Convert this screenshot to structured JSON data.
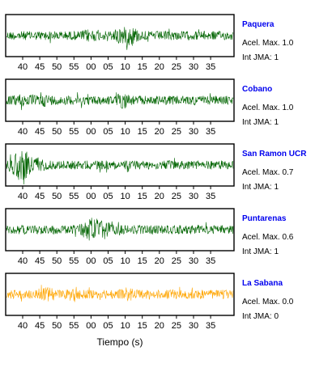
{
  "colors": {
    "frame": "#000000",
    "station_name": "#0000ee"
  },
  "chart_data": {
    "type": "line",
    "xlabel": "Tiempo (s)",
    "x_ticks": [
      "40",
      "45",
      "50",
      "55",
      "00",
      "05",
      "10",
      "15",
      "20",
      "25",
      "30",
      "35"
    ],
    "panels": [
      {
        "station": "Paquera",
        "acel_max": "Acel. Max. 1.0",
        "int_jma": "Int JMA: 1",
        "color": "#006400",
        "bursts": [
          [
            22,
            1.6
          ],
          [
            30,
            2.0
          ],
          [
            33,
            2.4
          ]
        ]
      },
      {
        "station": "Cobano",
        "acel_max": "Acel. Max. 1.0",
        "int_jma": "Int JMA: 1",
        "color": "#006400",
        "bursts": [
          [
            4,
            1.6
          ],
          [
            10,
            1.5
          ],
          [
            31,
            2.0
          ]
        ]
      },
      {
        "station": "San Ramon UCR",
        "acel_max": "Acel. Max. 0.7",
        "int_jma": "Int JMA: 1",
        "color": "#006400",
        "bursts": [
          [
            3,
            3.2
          ],
          [
            5,
            2.8
          ],
          [
            8,
            2.0
          ]
        ]
      },
      {
        "station": "Puntarenas",
        "acel_max": "Acel. Max. 0.6",
        "int_jma": "Int JMA: 1",
        "color": "#006400",
        "bursts": [
          [
            23,
            2.8
          ],
          [
            26,
            2.2
          ],
          [
            21,
            1.8
          ]
        ]
      },
      {
        "station": "La Sabana",
        "acel_max": "Acel. Max. 0.0",
        "int_jma": "Int JMA: 0",
        "color": "#ffa500",
        "bursts": [
          [
            11,
            1.8
          ],
          [
            18,
            1.8
          ],
          [
            32,
            1.6
          ]
        ]
      }
    ]
  }
}
